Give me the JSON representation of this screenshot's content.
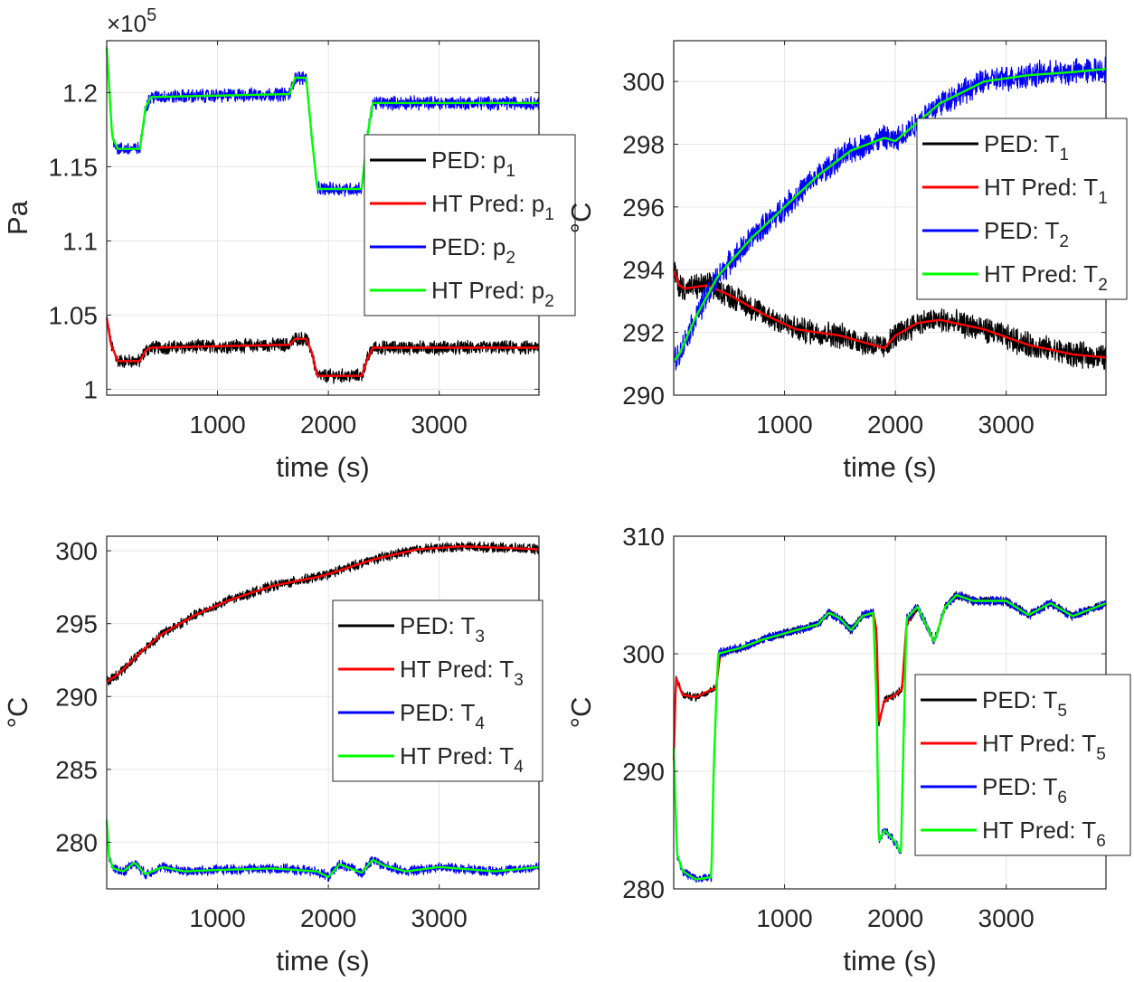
{
  "chart_data": [
    {
      "type": "line",
      "ylabel": "Pa",
      "xlabel": "time (s)",
      "exponent_label": "×10",
      "exponent_power": "5",
      "xlim": [
        0,
        3900
      ],
      "ylim": [
        0.996,
        1.235
      ],
      "xticks": [
        1000,
        2000,
        3000
      ],
      "xtick_labels": [
        "1000",
        "2000",
        "3000"
      ],
      "yticks": [
        1.0,
        1.05,
        1.1,
        1.15,
        1.2
      ],
      "ytick_labels": [
        "1",
        "1.05",
        "1.1",
        "1.15",
        "1.2"
      ],
      "grid": true,
      "legend_position": "middle-right",
      "colors": {
        "black": "#000000",
        "red": "#ff0000",
        "blue": "#0000ff",
        "green": "#00ff00"
      },
      "series": [
        {
          "name": "PED: p",
          "sub": "1",
          "color": "#000000",
          "noise": 0.004,
          "x": [
            0,
            40,
            100,
            300,
            350,
            400,
            1650,
            1700,
            1800,
            1850,
            1900,
            2300,
            2350,
            2400,
            3900
          ],
          "y": [
            1.048,
            1.03,
            1.019,
            1.019,
            1.026,
            1.028,
            1.03,
            1.034,
            1.034,
            1.025,
            1.009,
            1.009,
            1.02,
            1.028,
            1.028
          ]
        },
        {
          "name": "HT Pred: p",
          "sub": "1",
          "color": "#ff0000",
          "noise": 0,
          "x": [
            0,
            40,
            100,
            300,
            350,
            400,
            1650,
            1700,
            1800,
            1850,
            1900,
            2300,
            2350,
            2400,
            3900
          ],
          "y": [
            1.048,
            1.03,
            1.019,
            1.019,
            1.026,
            1.028,
            1.03,
            1.034,
            1.034,
            1.025,
            1.009,
            1.009,
            1.02,
            1.028,
            1.028
          ]
        },
        {
          "name": "PED: p",
          "sub": "2",
          "color": "#0000ff",
          "noise": 0.004,
          "x": [
            0,
            50,
            100,
            300,
            350,
            400,
            1650,
            1700,
            1800,
            1850,
            1900,
            2300,
            2350,
            2400,
            3900
          ],
          "y": [
            1.23,
            1.17,
            1.162,
            1.162,
            1.19,
            1.197,
            1.199,
            1.21,
            1.21,
            1.17,
            1.135,
            1.135,
            1.17,
            1.193,
            1.193
          ]
        },
        {
          "name": "HT Pred: p",
          "sub": "2",
          "color": "#00ff00",
          "noise": 0,
          "x": [
            0,
            50,
            100,
            300,
            350,
            400,
            1650,
            1700,
            1800,
            1850,
            1900,
            2300,
            2350,
            2400,
            3900
          ],
          "y": [
            1.23,
            1.17,
            1.162,
            1.162,
            1.19,
            1.197,
            1.199,
            1.21,
            1.21,
            1.17,
            1.135,
            1.135,
            1.17,
            1.193,
            1.193
          ]
        }
      ]
    },
    {
      "type": "line",
      "ylabel": "°C",
      "xlabel": "time (s)",
      "xlim": [
        0,
        3900
      ],
      "ylim": [
        290,
        301.3
      ],
      "xticks": [
        1000,
        2000,
        3000
      ],
      "xtick_labels": [
        "1000",
        "2000",
        "3000"
      ],
      "yticks": [
        290,
        292,
        294,
        296,
        298,
        300
      ],
      "ytick_labels": [
        "290",
        "292",
        "294",
        "296",
        "298",
        "300"
      ],
      "grid": true,
      "legend_position": "right",
      "series": [
        {
          "name": "PED: T",
          "sub": "1",
          "color": "#000000",
          "noise": 0.35,
          "x": [
            0,
            50,
            100,
            300,
            500,
            800,
            1100,
            1500,
            1900,
            2000,
            2200,
            2400,
            2800,
            3200,
            3600,
            3900
          ],
          "y": [
            294,
            293.5,
            293.4,
            293.5,
            293.2,
            292.6,
            292.1,
            291.9,
            291.5,
            291.9,
            292.3,
            292.4,
            292.1,
            291.6,
            291.3,
            291.2
          ]
        },
        {
          "name": "HT Pred: T",
          "sub": "1",
          "color": "#ff0000",
          "noise": 0,
          "x": [
            0,
            50,
            100,
            300,
            500,
            800,
            1100,
            1500,
            1900,
            2000,
            2200,
            2400,
            2800,
            3200,
            3600,
            3900
          ],
          "y": [
            294,
            293.5,
            293.4,
            293.5,
            293.2,
            292.6,
            292.1,
            291.9,
            291.5,
            291.9,
            292.3,
            292.4,
            292.1,
            291.6,
            291.3,
            291.2
          ]
        },
        {
          "name": "PED: T",
          "sub": "2",
          "color": "#0000ff",
          "noise": 0.35,
          "x": [
            0,
            50,
            200,
            400,
            700,
            1000,
            1300,
            1600,
            1900,
            2000,
            2400,
            2800,
            3200,
            3600,
            3900
          ],
          "y": [
            291.1,
            291.3,
            292.5,
            293.8,
            295,
            296,
            297,
            297.8,
            298.2,
            298.1,
            299.3,
            300,
            300.2,
            300.3,
            300.4
          ]
        },
        {
          "name": "HT Pred: T",
          "sub": "2",
          "color": "#00ff00",
          "noise": 0,
          "x": [
            0,
            50,
            200,
            400,
            700,
            1000,
            1300,
            1600,
            1900,
            2000,
            2400,
            2800,
            3200,
            3600,
            3900
          ],
          "y": [
            291.1,
            291.3,
            292.5,
            293.8,
            295,
            296,
            297,
            297.8,
            298.2,
            298.1,
            299.3,
            300,
            300.2,
            300.3,
            300.4
          ]
        }
      ]
    },
    {
      "type": "line",
      "ylabel": "°C",
      "xlabel": "time (s)",
      "xlim": [
        0,
        3900
      ],
      "ylim": [
        276.8,
        301
      ],
      "xticks": [
        1000,
        2000,
        3000
      ],
      "xtick_labels": [
        "1000",
        "2000",
        "3000"
      ],
      "yticks": [
        280,
        285,
        290,
        295,
        300
      ],
      "ytick_labels": [
        "280",
        "285",
        "290",
        "295",
        "300"
      ],
      "grid": true,
      "legend_position": "right",
      "series": [
        {
          "name": "PED: T",
          "sub": "3",
          "color": "#000000",
          "noise": 0.3,
          "x": [
            0,
            100,
            300,
            500,
            800,
            1100,
            1500,
            1900,
            2000,
            2400,
            2800,
            3200,
            3600,
            3900
          ],
          "y": [
            291,
            291.5,
            293,
            294.3,
            295.6,
            296.6,
            297.6,
            298.2,
            298.4,
            299.4,
            300.1,
            300.3,
            300.2,
            300.1
          ]
        },
        {
          "name": "HT Pred: T",
          "sub": "3",
          "color": "#ff0000",
          "noise": 0,
          "x": [
            0,
            100,
            300,
            500,
            800,
            1100,
            1500,
            1900,
            2000,
            2400,
            2800,
            3200,
            3600,
            3900
          ],
          "y": [
            291,
            291.5,
            293,
            294.3,
            295.6,
            296.6,
            297.6,
            298.2,
            298.4,
            299.4,
            300.1,
            300.3,
            300.2,
            300.1
          ]
        },
        {
          "name": "PED: T",
          "sub": "4",
          "color": "#0000ff",
          "noise": 0.3,
          "x": [
            0,
            20,
            60,
            150,
            250,
            350,
            500,
            700,
            1000,
            1500,
            1900,
            2000,
            2100,
            2300,
            2400,
            2500,
            2700,
            3000,
            3500,
            3900
          ],
          "y": [
            281.5,
            279,
            278.2,
            278,
            278.6,
            277.8,
            278.3,
            278,
            278.1,
            278.2,
            278,
            277.6,
            278.5,
            277.9,
            278.8,
            278.4,
            278,
            278.3,
            278,
            278.3
          ]
        },
        {
          "name": "HT Pred: T",
          "sub": "4",
          "color": "#00ff00",
          "noise": 0,
          "x": [
            0,
            20,
            60,
            150,
            250,
            350,
            500,
            700,
            1000,
            1500,
            1900,
            2000,
            2100,
            2300,
            2400,
            2500,
            2700,
            3000,
            3500,
            3900
          ],
          "y": [
            281.5,
            279,
            278.2,
            278,
            278.6,
            277.8,
            278.3,
            278,
            278.1,
            278.2,
            278,
            277.6,
            278.5,
            277.9,
            278.8,
            278.4,
            278,
            278.3,
            278,
            278.3
          ]
        }
      ]
    },
    {
      "type": "line",
      "ylabel": "°C",
      "xlabel": "time (s)",
      "xlim": [
        0,
        3900
      ],
      "ylim": [
        280,
        310
      ],
      "xticks": [
        1000,
        2000,
        3000
      ],
      "xtick_labels": [
        "1000",
        "2000",
        "3000"
      ],
      "yticks": [
        280,
        290,
        300,
        310
      ],
      "ytick_labels": [
        "280",
        "290",
        "300",
        "310"
      ],
      "grid": true,
      "legend_position": "middle-right",
      "series": [
        {
          "name": "PED: T",
          "sub": "5",
          "color": "#000000",
          "noise": 0.3,
          "x": [
            0,
            20,
            80,
            200,
            350,
            380,
            420,
            600,
            800,
            1100,
            1300,
            1400,
            1500,
            1600,
            1700,
            1800,
            1830,
            1850,
            1900,
            2000,
            2060,
            2100,
            2200,
            2300,
            2350,
            2450,
            2550,
            2700,
            3000,
            3200,
            3400,
            3600,
            3900
          ],
          "y": [
            291,
            298,
            296.5,
            296.3,
            297,
            297,
            300,
            300.5,
            301.2,
            302,
            302.5,
            303.5,
            303,
            302,
            303.2,
            303.5,
            302,
            294,
            296,
            296.5,
            297,
            302.5,
            304,
            302,
            301,
            304,
            305,
            304.5,
            304.5,
            303.3,
            304.3,
            303.2,
            304.3
          ]
        },
        {
          "name": "HT Pred: T",
          "sub": "5",
          "color": "#ff0000",
          "noise": 0,
          "x": [
            0,
            20,
            80,
            200,
            350,
            380,
            420,
            600,
            800,
            1100,
            1300,
            1400,
            1500,
            1600,
            1700,
            1800,
            1830,
            1850,
            1900,
            2000,
            2060,
            2100,
            2200,
            2300,
            2350,
            2450,
            2550,
            2700,
            3000,
            3200,
            3400,
            3600,
            3900
          ],
          "y": [
            291,
            298,
            296.5,
            296.3,
            297,
            297,
            300,
            300.5,
            301.2,
            302,
            302.5,
            303.5,
            303,
            302,
            303.2,
            303.5,
            302,
            294,
            296,
            296.5,
            297,
            302.5,
            304,
            302,
            301,
            304,
            305,
            304.5,
            304.5,
            303.3,
            304.3,
            303.2,
            304.3
          ]
        },
        {
          "name": "PED: T",
          "sub": "6",
          "color": "#0000ff",
          "noise": 0.35,
          "x": [
            0,
            30,
            80,
            200,
            340,
            360,
            400,
            600,
            800,
            1100,
            1300,
            1400,
            1500,
            1600,
            1700,
            1800,
            1830,
            1850,
            1900,
            1950,
            2000,
            2050,
            2100,
            2200,
            2300,
            2350,
            2450,
            2550,
            2700,
            3000,
            3200,
            3400,
            3600,
            3900
          ],
          "y": [
            292,
            283,
            281.5,
            280.8,
            281,
            290,
            300,
            300.5,
            301.2,
            302,
            302.5,
            303.5,
            303,
            302,
            303.2,
            303.5,
            296,
            284,
            285,
            284.5,
            284,
            283,
            303,
            304,
            302,
            301,
            304,
            305,
            304.5,
            304.5,
            303.3,
            304.3,
            303.2,
            304.3
          ]
        },
        {
          "name": "HT Pred: T",
          "sub": "6",
          "color": "#00ff00",
          "noise": 0,
          "x": [
            0,
            30,
            80,
            200,
            340,
            360,
            400,
            600,
            800,
            1100,
            1300,
            1400,
            1500,
            1600,
            1700,
            1800,
            1830,
            1850,
            1900,
            1950,
            2000,
            2050,
            2100,
            2200,
            2300,
            2350,
            2450,
            2550,
            2700,
            3000,
            3200,
            3400,
            3600,
            3900
          ],
          "y": [
            292,
            283,
            281.5,
            280.8,
            281,
            290,
            300,
            300.5,
            301.2,
            302,
            302.5,
            303.5,
            303,
            302,
            303.2,
            303.5,
            296,
            284,
            285,
            284.5,
            284,
            283,
            303,
            304,
            302,
            301,
            304,
            305,
            304.5,
            304.5,
            303.3,
            304.3,
            303.2,
            304.3
          ]
        }
      ]
    }
  ]
}
